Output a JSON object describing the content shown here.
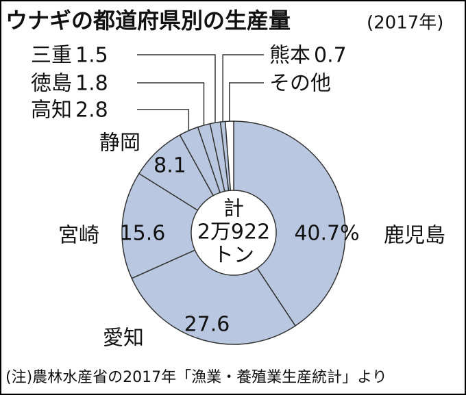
{
  "chart_data": {
    "type": "donut",
    "title": "ウナギの都道府県別の生産量",
    "subtitle": "(2017年)",
    "categories": [
      "鹿児島",
      "愛知",
      "宮崎",
      "静岡",
      "高知",
      "徳島",
      "三重",
      "熊本",
      "その他"
    ],
    "values": [
      40.7,
      27.6,
      15.6,
      8.1,
      2.8,
      1.8,
      1.5,
      0.7,
      1.2
    ],
    "value_labels": [
      "40.7%",
      "27.6",
      "15.6",
      "8.1",
      "2.8",
      "1.8",
      "1.5",
      "0.7",
      null
    ],
    "colors": [
      "#b9c8e0",
      "#b9c8e0",
      "#b9c8e0",
      "#b9c8e0",
      "#b9c8e0",
      "#b9c8e0",
      "#b9c8e0",
      "#b9c8e0",
      "#ffffff"
    ],
    "center_label": [
      "計",
      "2万922",
      "トン"
    ],
    "source": "(注)農林水産省の2017年「漁業・養殖業生産統計」より"
  }
}
